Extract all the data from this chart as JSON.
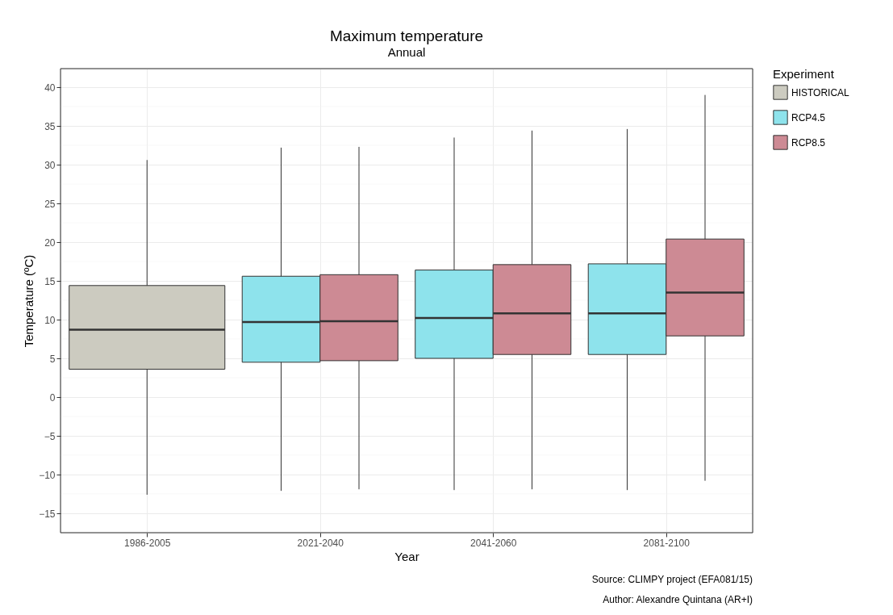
{
  "chart_data": {
    "type": "box",
    "title": "Maximum temperature",
    "subtitle": "Annual",
    "xlabel": "Year",
    "ylabel": "Temperature (ºC)",
    "legend_title": "Experiment",
    "categories": [
      "1986-2005",
      "2021-2040",
      "2041-2060",
      "2081-2100"
    ],
    "series": [
      {
        "name": "HISTORICAL",
        "color": "#cccbc0",
        "boxes": [
          {
            "low": -12.6,
            "q1": 3.6,
            "median": 8.7,
            "q3": 14.4,
            "high": 30.6
          },
          null,
          null,
          null
        ]
      },
      {
        "name": "RCP4.5",
        "color": "#8ee3ec",
        "boxes": [
          null,
          {
            "low": -12.1,
            "q1": 4.5,
            "median": 9.7,
            "q3": 15.6,
            "high": 32.2
          },
          {
            "low": -12.0,
            "q1": 5.0,
            "median": 10.2,
            "q3": 16.4,
            "high": 33.5
          },
          {
            "low": -12.0,
            "q1": 5.5,
            "median": 10.8,
            "q3": 17.2,
            "high": 34.6
          }
        ]
      },
      {
        "name": "RCP8.5",
        "color": "#cd8a94",
        "boxes": [
          null,
          {
            "low": -11.9,
            "q1": 4.7,
            "median": 9.8,
            "q3": 15.8,
            "high": 32.3
          },
          {
            "low": -11.9,
            "q1": 5.5,
            "median": 10.8,
            "q3": 17.1,
            "high": 34.4
          },
          {
            "low": -10.8,
            "q1": 7.9,
            "median": 13.5,
            "q3": 20.4,
            "high": 39.0
          }
        ]
      }
    ],
    "ylim": [
      -17.5,
      42.4
    ],
    "yticks": [
      -15,
      -10,
      -5,
      0,
      5,
      10,
      15,
      20,
      25,
      30,
      35,
      40
    ],
    "grid": true,
    "legend": "right",
    "annotations": [
      "Source: CLIMPY project (EFA081/15)",
      "Author: Alexandre Quintana (AR+I)"
    ]
  }
}
